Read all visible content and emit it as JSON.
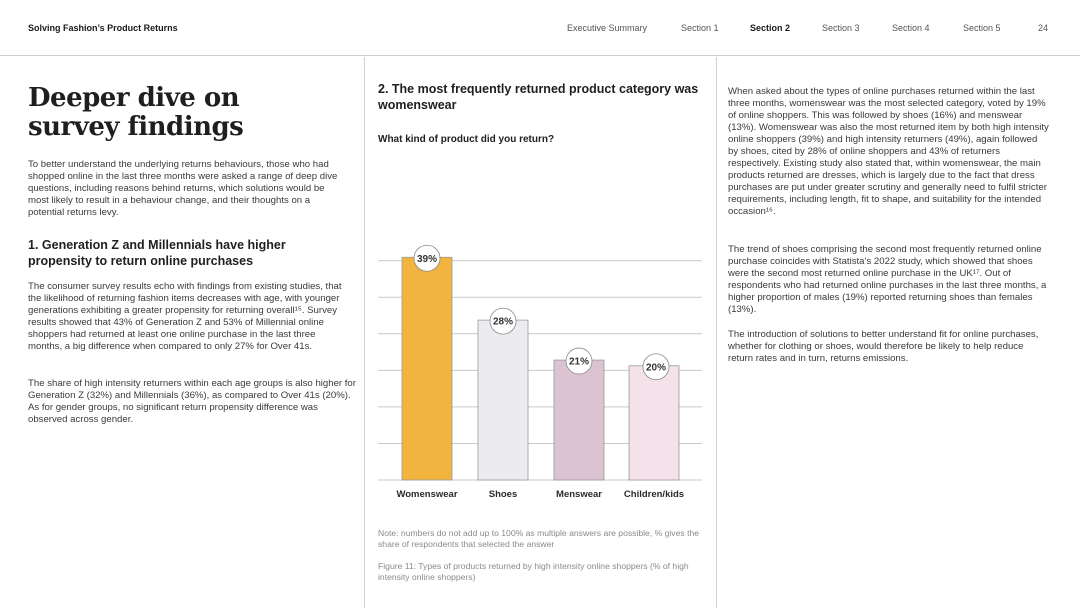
{
  "header": {
    "doc_title": "Solving Fashion’s Product Returns",
    "nav": [
      "Executive Summary",
      "Section 1",
      "Section 2",
      "Section 3",
      "Section 4",
      "Section 5"
    ],
    "active_index": 2,
    "page_number": "24"
  },
  "left": {
    "title_line1": "Deeper dive on",
    "title_line2": "survey findings",
    "intro": "To better understand the underlying returns behaviours, those who had shopped online in the last three months were asked a range of deep dive questions, including reasons behind returns, which solutions would be most likely to result in a behaviour change, and their thoughts on a potential returns levy.",
    "section1_heading": "1. Generation Z and Millennials have higher propensity to return online purchases",
    "para1": "The consumer survey results echo with findings from existing studies, that the likelihood of returning fashion items decreases with age, with younger generations exhibiting a greater propensity for returning overall¹⁵. Survey results showed that 43% of Generation Z and 53% of Millennial online shoppers had returned at least one online purchase in the last three months, a big difference when compared to only 27% for Over 41s.",
    "para2": "The share of high intensity returners within each age groups is also higher for Generation Z (32%) and Millennials (36%), as compared to Over 41s (20%). As for gender groups, no significant return propensity difference was observed across gender."
  },
  "middle": {
    "section2_heading": "2. The most frequently returned product category was womenswear",
    "question": "What kind of product did you return?",
    "note": "Note: numbers do not add up to 100% as multiple answers are possible, % gives the share of respondents that selected the answer",
    "figure_caption": "Figure 11: Types of products returned by high intensity online shoppers (% of high intensity online shoppers)"
  },
  "right": {
    "para1": "When asked about the types of online purchases returned within the last three months, womenswear was the most selected category, voted by 19% of online shoppers. This was followed by shoes (16%) and menswear (13%). Womenswear was also the most returned item by both high intensity online shoppers (39%) and high intensity returners (49%), again followed by shoes, cited by 28% of online shoppers and 43% of returners respectively. Existing study also stated that, within womenswear, the main products returned are dresses, which is largely due to the fact that dress purchases are put under greater scrutiny and generally need to fulfil stricter requirements, including length, fit to shape, and suitability for the intended occasion¹⁶.",
    "para2": "The trend of shoes comprising the second most frequently returned online purchase coincides with Statista’s 2022 study, which showed that shoes were the second most returned online purchase in the UK¹⁷. Out of respondents who had returned online purchases in the last three months, a higher proportion of males (19%) reported returning shoes than females (13%).",
    "para3": "The introduction of solutions to better understand fit for online purchases, whether for clothing or shoes, would therefore be likely to help reduce return rates and in turn, returns emissions."
  },
  "chart_data": {
    "type": "bar",
    "categories": [
      "Womenswear",
      "Shoes",
      "Menswear",
      "Children/kids"
    ],
    "values": [
      39,
      28,
      21,
      20
    ],
    "value_labels": [
      "39%",
      "28%",
      "21%",
      "20%"
    ],
    "colors": [
      "#f2b43e",
      "#ececf0",
      "#dcc3d1",
      "#f4e1ea"
    ],
    "unit": "%",
    "ylim": [
      0,
      45
    ],
    "grid": true,
    "legend": "none"
  }
}
